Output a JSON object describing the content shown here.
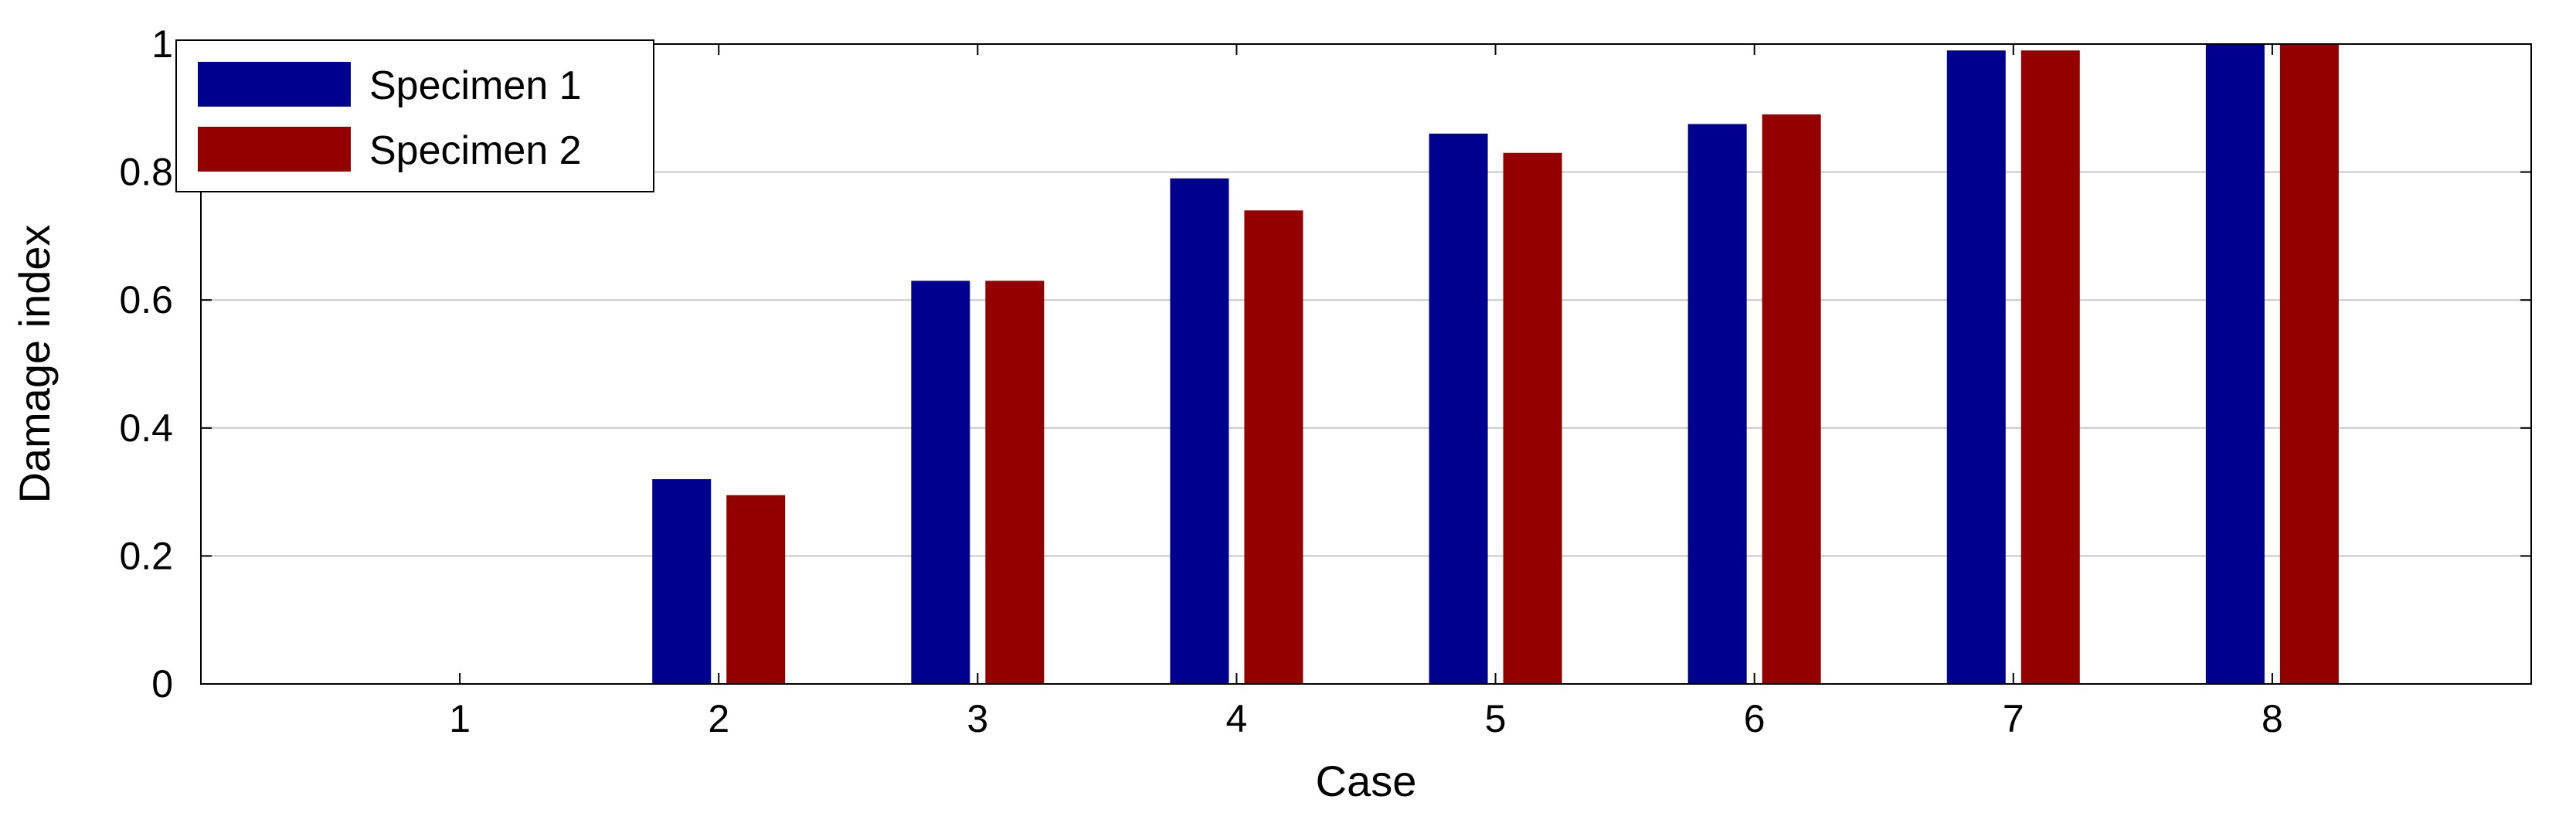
{
  "chart_data": {
    "type": "bar",
    "title": "",
    "xlabel": "Case",
    "ylabel": "Damage index",
    "categories": [
      "1",
      "2",
      "3",
      "4",
      "5",
      "6",
      "7",
      "8"
    ],
    "series": [
      {
        "name": "Specimen 1",
        "color": "#00008f",
        "values": [
          0,
          0.32,
          0.63,
          0.79,
          0.86,
          0.875,
          0.99,
          1.0
        ]
      },
      {
        "name": "Specimen 2",
        "color": "#930000",
        "values": [
          0,
          0.295,
          0.63,
          0.74,
          0.83,
          0.89,
          0.99,
          1.0
        ]
      }
    ],
    "yticks": [
      "0",
      "0.2",
      "0.4",
      "0.6",
      "0.8",
      "1"
    ],
    "ylim": [
      0,
      1
    ],
    "grid": true,
    "legend_position": "top-left"
  }
}
